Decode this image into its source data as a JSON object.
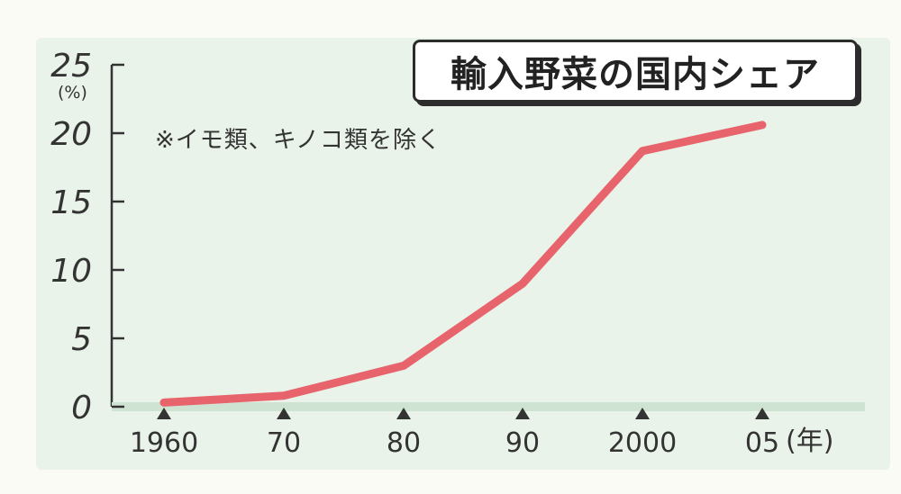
{
  "chart_data": {
    "type": "line",
    "title": "輸入野菜の国内シェア",
    "note": "※イモ類、キノコ類を除く",
    "ylabel": "(%)",
    "xlabel": "(年)",
    "ylim": [
      0,
      25
    ],
    "y_ticks": [
      "0",
      "5",
      "10",
      "15",
      "20",
      "25"
    ],
    "y_tick_values": [
      0,
      5,
      10,
      15,
      20,
      25
    ],
    "x_ticks": [
      "1960",
      "70",
      "80",
      "90",
      "2000",
      "05"
    ],
    "x": [
      1960,
      1970,
      1980,
      1990,
      2000,
      2005
    ],
    "series": [
      {
        "values": [
          0.3,
          0.8,
          3.0,
          9.0,
          18.7,
          20.6
        ]
      }
    ],
    "colors": {
      "line": "#e8646c",
      "axis": "#333333",
      "marker": "#333333"
    },
    "grid": false
  }
}
